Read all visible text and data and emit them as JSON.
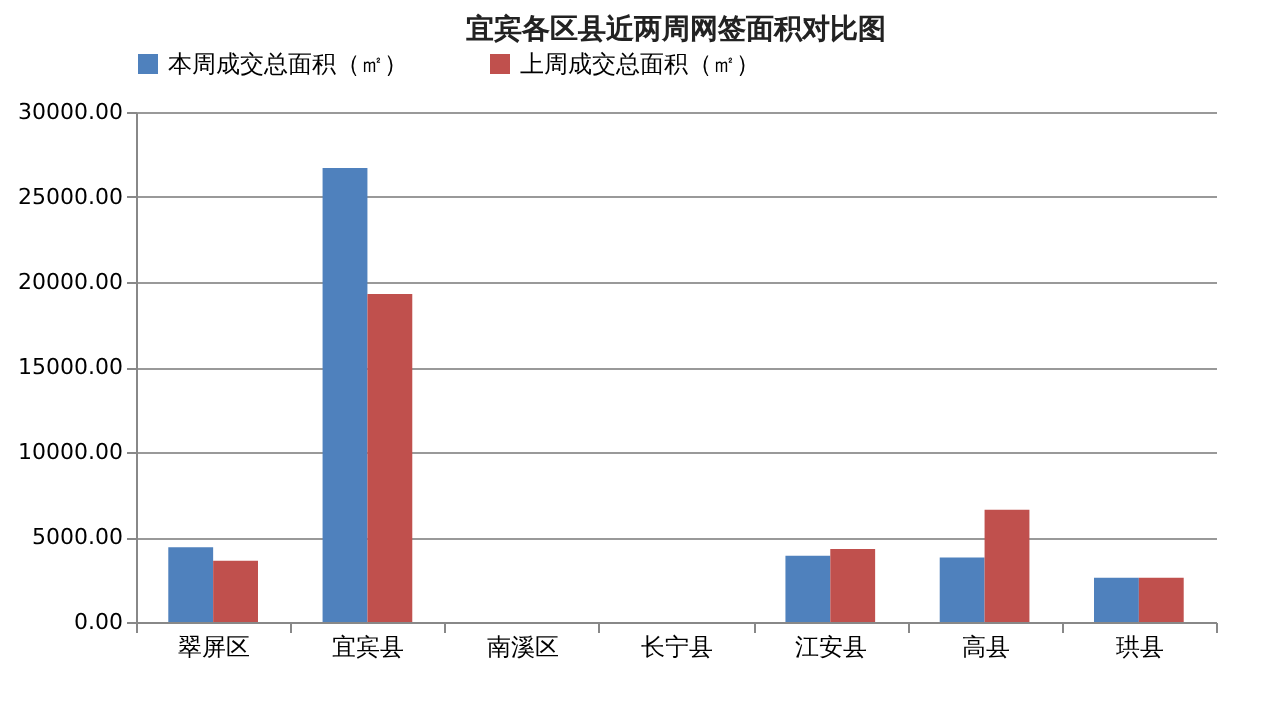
{
  "chart_data": {
    "type": "bar",
    "title": "宜宾各区县近两周网签面积对比图",
    "categories": [
      "翠屏区",
      "宜宾县",
      "南溪区",
      "长宁县",
      "江安县",
      "高县",
      "珙县"
    ],
    "series": [
      {
        "name": "本周成交总面积（㎡）",
        "color": "#4f81bd",
        "values": [
          4400,
          26700,
          0,
          0,
          3900,
          3800,
          2600
        ]
      },
      {
        "name": "上周成交总面积（㎡）",
        "color": "#c0504d",
        "values": [
          3600,
          19300,
          0,
          0,
          4300,
          6600,
          2600
        ]
      }
    ],
    "ylim": [
      0,
      30000
    ],
    "yticks": [
      {
        "value": 0,
        "label": "0.00"
      },
      {
        "value": 5000,
        "label": "5000.00"
      },
      {
        "value": 10000,
        "label": "10000.00"
      },
      {
        "value": 15000,
        "label": "15000.00"
      },
      {
        "value": 20000,
        "label": "20000.00"
      },
      {
        "value": 25000,
        "label": "25000.00"
      },
      {
        "value": 30000,
        "label": "30000.00"
      }
    ],
    "grid": "y",
    "legend": "top"
  }
}
